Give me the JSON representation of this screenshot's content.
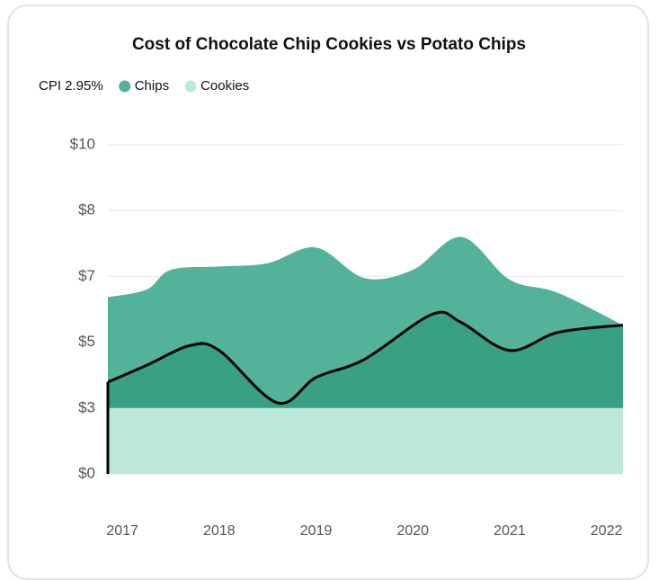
{
  "chart_data": {
    "type": "area",
    "title": "Cost of Chocolate Chip Cookies vs Potato Chips",
    "xlim": [
      2016.85,
      2022.17
    ],
    "xticks": [
      2017,
      2018,
      2019,
      2020,
      2021,
      2022
    ],
    "ylim": [
      0,
      10
    ],
    "yticks": [
      {
        "value": 0,
        "label": "$0"
      },
      {
        "value": 3,
        "label": "$3"
      },
      {
        "value": 5,
        "label": "$5"
      },
      {
        "value": 7,
        "label": "$7"
      },
      {
        "value": 8,
        "label": "$8"
      },
      {
        "value": 10,
        "label": "$10"
      }
    ],
    "grid": true,
    "series": [
      {
        "name": "CPI 2.95%",
        "color": "#000000",
        "fill": "#3aa084",
        "x": [
          2016.85,
          2017.25,
          2017.7,
          2018,
          2018.6,
          2019,
          2019.5,
          2020.2,
          2020.5,
          2021,
          2021.5,
          2022.17
        ],
        "values": [
          3.79,
          4.3,
          4.9,
          4.75,
          3.16,
          3.93,
          4.48,
          5.85,
          5.6,
          4.75,
          5.3,
          5.52
        ]
      },
      {
        "name": "Chips",
        "color": "#52b39a",
        "x": [
          2016.85,
          2017.25,
          2017.5,
          2018,
          2018.5,
          2019,
          2019.5,
          2020,
          2020.5,
          2021,
          2021.5,
          2022.17
        ],
        "values": [
          6.37,
          6.6,
          7.1,
          7.15,
          7.2,
          7.44,
          6.95,
          7.1,
          7.6,
          6.9,
          6.5,
          5.52
        ]
      },
      {
        "name": "Cookies",
        "color": "#bde9da",
        "x": [
          2016.85,
          2022.17
        ],
        "values": [
          3,
          3
        ]
      }
    ]
  }
}
